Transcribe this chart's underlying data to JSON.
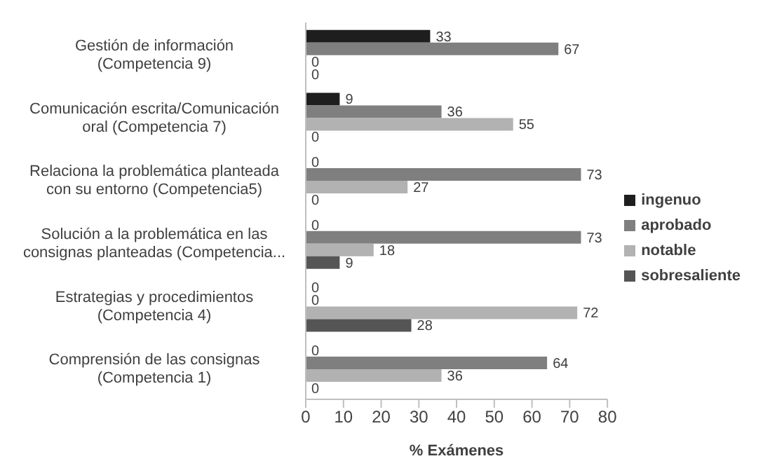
{
  "chart_data": {
    "type": "bar",
    "orientation": "horizontal",
    "xlabel": "% Exámenes",
    "categories": [
      "Gestión de información (Competencia 9)",
      "Comunicación escrita/Comunicación oral (Competencia 7)",
      "Relaciona la problemática planteada con su entorno (Competencia5)",
      "Solución a la problemática en las consignas planteadas (Competencia...",
      "Estrategias y procedimientos (Competencia 4)",
      "Comprensión de las consignas (Competencia 1)"
    ],
    "series": [
      {
        "name": "ingenuo",
        "color": "#1e1e1e",
        "values": [
          33,
          9,
          0,
          0,
          0,
          0
        ]
      },
      {
        "name": "aprobado",
        "color": "#7f7f7f",
        "values": [
          67,
          36,
          73,
          73,
          0,
          64
        ]
      },
      {
        "name": "notable",
        "color": "#b2b2b2",
        "values": [
          0,
          55,
          27,
          18,
          72,
          36
        ]
      },
      {
        "name": "sobresaliente",
        "color": "#555555",
        "values": [
          0,
          0,
          0,
          9,
          28,
          0
        ]
      }
    ],
    "xlim": [
      0,
      80
    ],
    "xticks": [
      0,
      10,
      20,
      30,
      40,
      50,
      60,
      70,
      80
    ],
    "grid": false,
    "legend": "right",
    "data_labels": true
  }
}
